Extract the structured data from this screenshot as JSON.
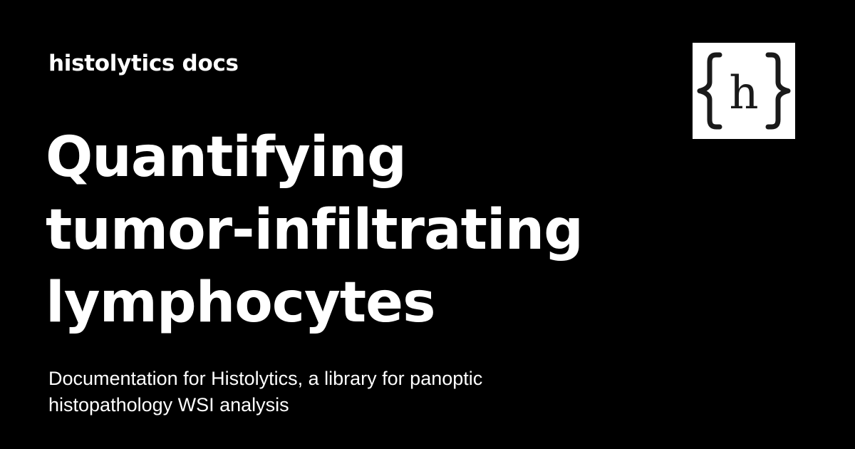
{
  "site": {
    "name": "histolytics docs"
  },
  "page": {
    "title_lines": [
      "Quantifying",
      "tumor-infiltrating",
      "lymphocytes"
    ],
    "description": "Documentation for Histolytics, a library for panoptic histopathology WSI analysis"
  },
  "logo": {
    "icon": "curly-braces-h-logo-icon",
    "letter": "h",
    "background": "#ffffff",
    "foreground": "#1a1a1a"
  },
  "colors": {
    "background": "#000000",
    "text": "#ffffff"
  }
}
